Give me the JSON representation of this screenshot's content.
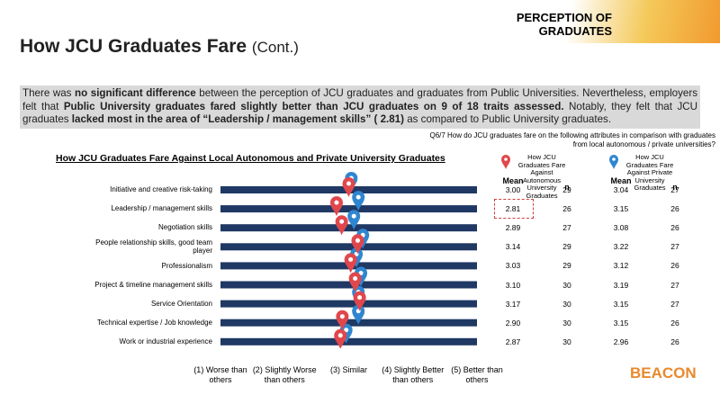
{
  "header": {
    "section": "PERCEPTION OF GRADUATES",
    "title": "How JCU Graduates Fare",
    "title_suffix": "(Cont.)",
    "logo": "BEACON"
  },
  "summary": [
    {
      "text": "There was "
    },
    {
      "text": "no significant difference",
      "bold": true
    },
    {
      "text": " between the perception of JCU graduates and graduates from Public Universities.  Nevertheless, employers felt that "
    },
    {
      "text": "Public University graduates fared slightly better than JCU graduates on 9 of 18 traits assessed.",
      "bold": true
    },
    {
      "text": "  Notably, they felt that JCU graduates "
    },
    {
      "text": "lacked most in the area of “Leadership / management skills” ( 2.81)",
      "bold": true
    },
    {
      "text": " as compared to Public University graduates."
    }
  ],
  "question": "Q6/7 How do JCU graduates fare on the following attributes in comparison with graduates from local autonomous / private universities?",
  "chart_data": {
    "type": "dot",
    "title": "How JCU Graduates Fare Against Local Autonomous and Private University Graduates",
    "categories": [
      "Initiative and creative risk-taking",
      "Leadership / management skills",
      "Negotiation skills",
      "People relationship skills, good team player",
      "Professionalism",
      "Project & timeline management skills",
      "Service Orientation",
      "Technical expertise / Job knowledge",
      "Work or industrial experience"
    ],
    "series": [
      {
        "name": "How JCU Graduates Fare Against Autonomous University Graduates",
        "color": "#e0474c",
        "values": [
          3.0,
          2.81,
          2.89,
          3.14,
          3.03,
          3.1,
          3.17,
          2.9,
          2.87
        ],
        "value_labels": [
          "3.00",
          "2.81",
          "2.89",
          "3.14",
          "3.03",
          "3.10",
          "3.17",
          "2.90",
          "2.87"
        ],
        "n": [
          29,
          26,
          27,
          29,
          29,
          30,
          30,
          30,
          30
        ]
      },
      {
        "name": "How JCU Graduates Fare Against Private University Graduates",
        "color": "#2f86d0",
        "values": [
          3.04,
          3.15,
          3.08,
          3.22,
          3.12,
          3.19,
          3.15,
          3.15,
          2.96
        ],
        "value_labels": [
          "3.04",
          "3.15",
          "3.08",
          "3.22",
          "3.12",
          "3.19",
          "3.15",
          "3.15",
          "2.96"
        ],
        "n": [
          27,
          26,
          26,
          27,
          26,
          27,
          27,
          26,
          26
        ]
      }
    ],
    "table_headers": [
      "Mean",
      "n"
    ],
    "xlim": [
      1,
      5
    ],
    "xticks": [
      {
        "value": 1,
        "label": "(1) Worse than others"
      },
      {
        "value": 2,
        "label": "(2) Slightly Worse than others"
      },
      {
        "value": 3,
        "label": "(3) Similar"
      },
      {
        "value": 4,
        "label": "(4) Slightly Better than others"
      },
      {
        "value": 5,
        "label": "(5) Better than others"
      }
    ],
    "bar_color": "#1f3864"
  }
}
